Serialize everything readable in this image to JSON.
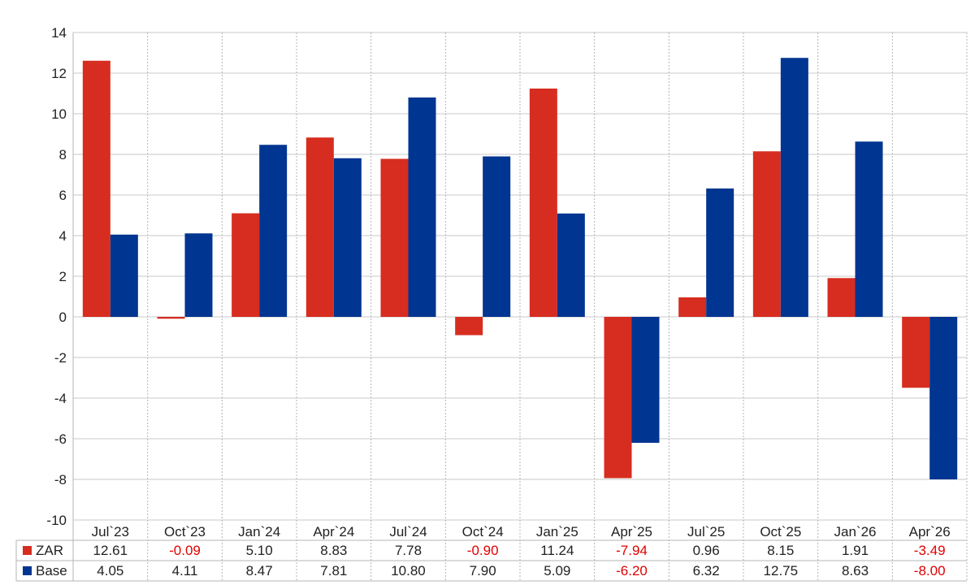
{
  "chart_data": {
    "type": "bar",
    "title": "",
    "xlabel": "",
    "ylabel": "",
    "ylim": [
      -10,
      14
    ],
    "yticks": [
      14,
      12,
      10,
      8,
      6,
      4,
      2,
      0,
      -2,
      -4,
      -6,
      -8,
      -10
    ],
    "grid": true,
    "categories": [
      "Jul`23",
      "Oct`23",
      "Jan`24",
      "Apr`24",
      "Jul`24",
      "Oct`24",
      "Jan`25",
      "Apr`25",
      "Jul`25",
      "Oct`25",
      "Jan`26",
      "Apr`26"
    ],
    "series": [
      {
        "name": "ZAR",
        "color": "#d62d20",
        "values": [
          12.61,
          -0.09,
          5.1,
          8.83,
          7.78,
          -0.9,
          11.24,
          -7.94,
          0.96,
          8.15,
          1.91,
          -3.49
        ],
        "labels": [
          "12.61",
          "-0.09",
          "5.10",
          "8.83",
          "7.78",
          "-0.90",
          "11.24",
          "-7.94",
          "0.96",
          "8.15",
          "1.91",
          "-3.49"
        ]
      },
      {
        "name": "Base",
        "color": "#003591",
        "values": [
          4.05,
          4.11,
          8.47,
          7.81,
          10.8,
          7.9,
          5.09,
          -6.2,
          6.32,
          12.75,
          8.63,
          -8.0
        ],
        "labels": [
          "4.05",
          "4.11",
          "8.47",
          "7.81",
          "10.80",
          "7.90",
          "5.09",
          "-6.20",
          "6.32",
          "12.75",
          "8.63",
          "-8.00"
        ]
      }
    ],
    "negative_value_color": "#e00000",
    "data_table": true
  }
}
